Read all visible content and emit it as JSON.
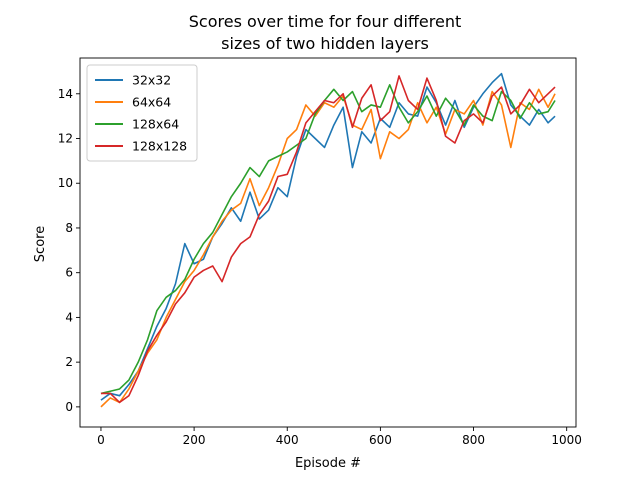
{
  "chart_data": {
    "type": "line",
    "title_line1": "Scores over time for four different",
    "title_line2": "sizes of two hidden layers",
    "xlabel": "Episode #",
    "ylabel": "Score",
    "xlim": [
      -45,
      1020
    ],
    "ylim": [
      -0.9,
      15.6
    ],
    "xticks": [
      0,
      200,
      400,
      600,
      800,
      1000
    ],
    "yticks": [
      0,
      2,
      4,
      6,
      8,
      10,
      12,
      14
    ],
    "grid": false,
    "legend_position": "upper-left",
    "series": [
      {
        "name": "32x32",
        "color": "#1f77b4",
        "x": [
          0,
          20,
          40,
          60,
          80,
          100,
          120,
          140,
          160,
          180,
          200,
          220,
          240,
          260,
          280,
          300,
          320,
          340,
          360,
          380,
          400,
          420,
          440,
          460,
          480,
          500,
          520,
          540,
          560,
          580,
          600,
          620,
          640,
          660,
          680,
          700,
          720,
          740,
          760,
          780,
          800,
          820,
          840,
          860,
          880,
          900,
          920,
          940,
          960,
          975
        ],
        "values": [
          0.3,
          0.6,
          0.5,
          1.0,
          1.6,
          2.6,
          3.6,
          4.4,
          5.5,
          7.3,
          6.4,
          6.6,
          7.6,
          8.2,
          8.9,
          8.3,
          9.6,
          8.4,
          8.8,
          9.8,
          9.4,
          11.2,
          12.4,
          12.0,
          11.6,
          12.6,
          13.4,
          10.7,
          12.3,
          11.8,
          12.9,
          12.5,
          13.6,
          13.1,
          13.0,
          14.3,
          13.6,
          12.6,
          13.7,
          12.5,
          13.4,
          14.0,
          14.5,
          14.9,
          13.5,
          13.0,
          12.6,
          13.3,
          12.7,
          13.0
        ]
      },
      {
        "name": "64x64",
        "color": "#ff7f0e",
        "x": [
          0,
          20,
          40,
          60,
          80,
          100,
          120,
          140,
          160,
          180,
          200,
          220,
          240,
          260,
          280,
          300,
          320,
          340,
          360,
          380,
          400,
          420,
          440,
          460,
          480,
          500,
          520,
          540,
          560,
          580,
          600,
          620,
          640,
          660,
          680,
          700,
          720,
          740,
          760,
          780,
          800,
          820,
          840,
          860,
          880,
          900,
          920,
          940,
          960,
          975
        ],
        "values": [
          0.0,
          0.4,
          0.2,
          0.8,
          1.6,
          2.4,
          3.0,
          4.0,
          4.8,
          5.6,
          6.1,
          6.8,
          7.6,
          8.3,
          8.8,
          9.1,
          10.2,
          9.0,
          9.8,
          10.8,
          12.0,
          12.4,
          13.5,
          13.0,
          13.6,
          13.4,
          13.9,
          12.6,
          12.4,
          13.3,
          11.1,
          12.3,
          12.0,
          12.4,
          13.6,
          12.7,
          13.4,
          12.2,
          13.3,
          13.1,
          13.7,
          12.6,
          14.1,
          13.5,
          11.6,
          13.6,
          13.3,
          14.2,
          13.4,
          14.0
        ]
      },
      {
        "name": "128x64",
        "color": "#2ca02c",
        "x": [
          0,
          20,
          40,
          60,
          80,
          100,
          120,
          140,
          160,
          180,
          200,
          220,
          240,
          260,
          280,
          300,
          320,
          340,
          360,
          380,
          400,
          420,
          440,
          460,
          480,
          500,
          520,
          540,
          560,
          580,
          600,
          620,
          640,
          660,
          680,
          700,
          720,
          740,
          760,
          780,
          800,
          820,
          840,
          860,
          880,
          900,
          920,
          940,
          960,
          975
        ],
        "values": [
          0.6,
          0.7,
          0.8,
          1.2,
          2.0,
          3.0,
          4.3,
          4.9,
          5.2,
          5.7,
          6.6,
          7.3,
          7.8,
          8.6,
          9.4,
          10.0,
          10.7,
          10.3,
          11.0,
          11.2,
          11.4,
          11.7,
          12.0,
          13.1,
          13.7,
          14.2,
          13.7,
          14.1,
          13.2,
          13.5,
          13.4,
          14.4,
          13.4,
          12.7,
          13.2,
          13.9,
          13.0,
          13.8,
          13.3,
          12.6,
          13.5,
          13.0,
          12.8,
          14.1,
          13.7,
          12.9,
          13.6,
          13.1,
          13.2,
          13.7
        ]
      },
      {
        "name": "128x128",
        "color": "#d62728",
        "x": [
          0,
          20,
          40,
          60,
          80,
          100,
          120,
          140,
          160,
          180,
          200,
          220,
          240,
          260,
          280,
          300,
          320,
          340,
          360,
          380,
          400,
          420,
          440,
          460,
          480,
          500,
          520,
          540,
          560,
          580,
          600,
          620,
          640,
          660,
          680,
          700,
          720,
          740,
          760,
          780,
          800,
          820,
          840,
          860,
          880,
          900,
          920,
          940,
          960,
          975
        ],
        "values": [
          0.6,
          0.6,
          0.2,
          0.5,
          1.4,
          2.5,
          3.2,
          3.8,
          4.6,
          5.1,
          5.8,
          6.1,
          6.3,
          5.6,
          6.7,
          7.3,
          7.6,
          8.6,
          9.2,
          10.3,
          10.4,
          11.4,
          12.7,
          13.2,
          13.7,
          13.6,
          14.0,
          12.5,
          13.8,
          14.4,
          12.8,
          13.2,
          14.8,
          13.7,
          13.3,
          14.7,
          13.7,
          12.1,
          11.8,
          12.8,
          13.1,
          12.7,
          13.9,
          14.3,
          13.1,
          13.5,
          14.2,
          13.6,
          14.0,
          14.3
        ]
      }
    ]
  }
}
